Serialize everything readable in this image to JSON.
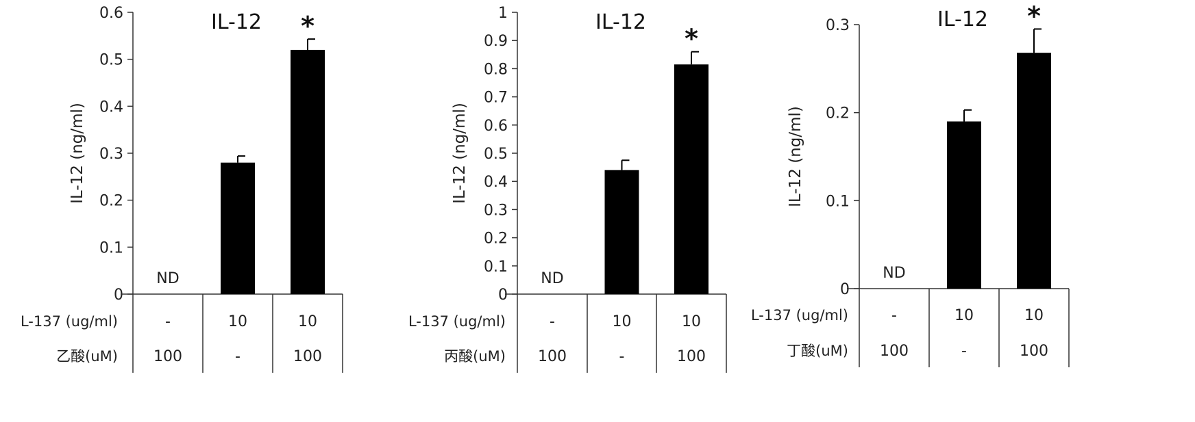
{
  "chart_data": [
    {
      "type": "bar",
      "title": "IL-12",
      "ylabel": "IL-12 (ng/ml)",
      "ylim": [
        0,
        0.6
      ],
      "yticks": [
        "0",
        "0.1",
        "0.2",
        "0.3",
        "0.4",
        "0.5",
        "0.6"
      ],
      "values": [
        0,
        0.28,
        0.52
      ],
      "errors": [
        0,
        0.014,
        0.023
      ],
      "bar_labels": [
        "ND",
        "",
        ""
      ],
      "significance": [
        "",
        "",
        "*"
      ],
      "rows": [
        {
          "label": "L-137 (ug/ml)",
          "cells": [
            "-",
            "10",
            "10"
          ]
        },
        {
          "label": "乙酸(uM)",
          "cells": [
            "100",
            "-",
            "100"
          ]
        }
      ]
    },
    {
      "type": "bar",
      "title": "IL-12",
      "ylabel": "IL-12 (ng/ml)",
      "ylim": [
        0,
        1
      ],
      "yticks": [
        "0",
        "0.1",
        "0.2",
        "0.3",
        "0.4",
        "0.5",
        "0.6",
        "0.7",
        "0.8",
        "0.9",
        "1"
      ],
      "values": [
        0,
        0.44,
        0.815
      ],
      "errors": [
        0,
        0.035,
        0.045
      ],
      "bar_labels": [
        "ND",
        "",
        ""
      ],
      "significance": [
        "",
        "",
        "*"
      ],
      "rows": [
        {
          "label": "L-137 (ug/ml)",
          "cells": [
            "-",
            "10",
            "10"
          ]
        },
        {
          "label": "丙酸(uM)",
          "cells": [
            "100",
            "-",
            "100"
          ]
        }
      ]
    },
    {
      "type": "bar",
      "title": "IL-12",
      "ylabel": "IL-12 (ng/ml)",
      "ylim": [
        0,
        0.3
      ],
      "yticks": [
        "0",
        "0.1",
        "0.2",
        "0.3"
      ],
      "values": [
        0,
        0.19,
        0.268
      ],
      "errors": [
        0,
        0.013,
        0.027
      ],
      "bar_labels": [
        "ND",
        "",
        ""
      ],
      "significance": [
        "",
        "",
        "*"
      ],
      "rows": [
        {
          "label": "L-137 (ug/ml)",
          "cells": [
            "-",
            "10",
            "10"
          ]
        },
        {
          "label": "丁酸(uM)",
          "cells": [
            "100",
            "-",
            "100"
          ]
        }
      ]
    }
  ]
}
